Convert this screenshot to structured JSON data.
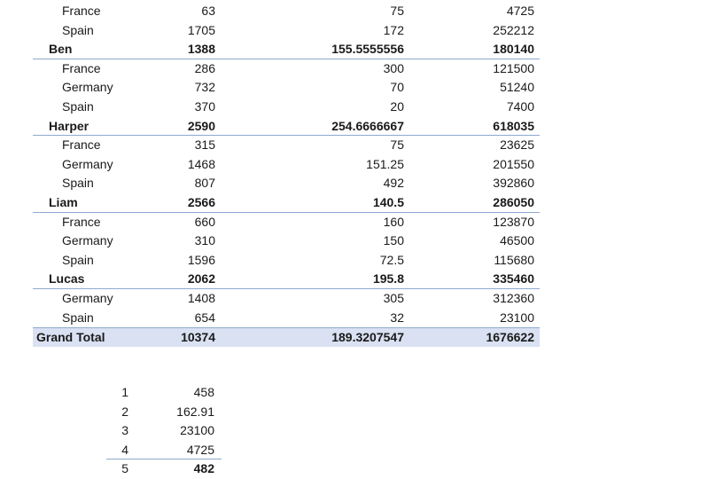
{
  "pivot": {
    "rows": [
      {
        "type": "child",
        "label": "France",
        "c1": "63",
        "c2": "75",
        "c3": "4725"
      },
      {
        "type": "child",
        "label": "Spain",
        "c1": "1705",
        "c2": "172",
        "c3": "252212"
      },
      {
        "type": "group",
        "label": "Ben",
        "c1": "1388",
        "c2": "155.5555556",
        "c3": "180140"
      },
      {
        "type": "child",
        "label": "France",
        "c1": "286",
        "c2": "300",
        "c3": "121500"
      },
      {
        "type": "child",
        "label": "Germany",
        "c1": "732",
        "c2": "70",
        "c3": "51240"
      },
      {
        "type": "child",
        "label": "Spain",
        "c1": "370",
        "c2": "20",
        "c3": "7400"
      },
      {
        "type": "group",
        "label": "Harper",
        "c1": "2590",
        "c2": "254.6666667",
        "c3": "618035"
      },
      {
        "type": "child",
        "label": "France",
        "c1": "315",
        "c2": "75",
        "c3": "23625"
      },
      {
        "type": "child",
        "label": "Germany",
        "c1": "1468",
        "c2": "151.25",
        "c3": "201550"
      },
      {
        "type": "child",
        "label": "Spain",
        "c1": "807",
        "c2": "492",
        "c3": "392860"
      },
      {
        "type": "group",
        "label": "Liam",
        "c1": "2566",
        "c2": "140.5",
        "c3": "286050"
      },
      {
        "type": "child",
        "label": "France",
        "c1": "660",
        "c2": "160",
        "c3": "123870"
      },
      {
        "type": "child",
        "label": "Germany",
        "c1": "310",
        "c2": "150",
        "c3": "46500"
      },
      {
        "type": "child",
        "label": "Spain",
        "c1": "1596",
        "c2": "72.5",
        "c3": "115680"
      },
      {
        "type": "group",
        "label": "Lucas",
        "c1": "2062",
        "c2": "195.8",
        "c3": "335460"
      },
      {
        "type": "child",
        "label": "Germany",
        "c1": "1408",
        "c2": "305",
        "c3": "312360"
      },
      {
        "type": "child",
        "label": "Spain",
        "c1": "654",
        "c2": "32",
        "c3": "23100"
      },
      {
        "type": "total",
        "label": "Grand Total",
        "c1": "10374",
        "c2": "189.3207547",
        "c3": "1676622"
      }
    ]
  },
  "list": {
    "rows": [
      {
        "index": "1",
        "value": "458"
      },
      {
        "index": "2",
        "value": "162.91"
      },
      {
        "index": "3",
        "value": "23100"
      },
      {
        "index": "4",
        "value": "4725"
      },
      {
        "index": "5",
        "value": "482"
      }
    ]
  }
}
